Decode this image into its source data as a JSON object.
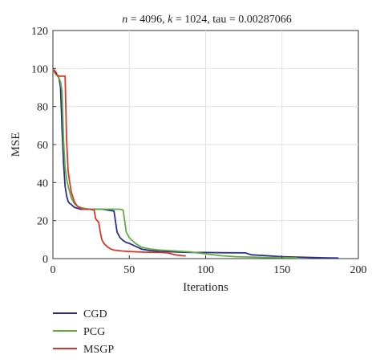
{
  "chart_data": {
    "type": "line",
    "title_parts": [
      {
        "text": "n",
        "italic": true
      },
      {
        "text": " = 4096, ",
        "italic": false
      },
      {
        "text": "k",
        "italic": true
      },
      {
        "text": " = 1024, tau = 0.00287066",
        "italic": false
      }
    ],
    "xlabel": "Iterations",
    "ylabel": "MSE",
    "xlim": [
      0,
      200
    ],
    "ylim": [
      0,
      120
    ],
    "xticks": [
      0,
      50,
      100,
      150,
      200
    ],
    "yticks": [
      0,
      20,
      40,
      60,
      80,
      100,
      120
    ],
    "grid": true,
    "legend_position": "below",
    "series": [
      {
        "name": "CGD",
        "color": "#2a2f8f",
        "x": [
          0,
          1,
          2,
          3,
          4,
          5,
          6,
          7,
          8,
          9,
          10,
          11,
          12,
          14,
          16,
          18,
          20,
          24,
          28,
          32,
          36,
          40,
          42,
          44,
          46,
          48,
          50,
          54,
          58,
          64,
          70,
          80,
          90,
          100,
          110,
          126,
          130,
          140,
          150,
          160,
          170,
          180,
          187
        ],
        "y": [
          100,
          99,
          98,
          96,
          95,
          90,
          68,
          50,
          38,
          33,
          30,
          29,
          28.5,
          27,
          26.5,
          26,
          26,
          26,
          26,
          26,
          25.5,
          25,
          14,
          11,
          9.5,
          8.5,
          8,
          6.5,
          5,
          4.2,
          3.8,
          3.5,
          3.2,
          3.2,
          3.1,
          3.0,
          2.0,
          1.5,
          1.0,
          0.8,
          0.6,
          0.4,
          0.3
        ]
      },
      {
        "name": "PCG",
        "color": "#5dae3f",
        "x": [
          0,
          1,
          2,
          3,
          4,
          5,
          6,
          7,
          8,
          9,
          10,
          11,
          12,
          14,
          16,
          18,
          20,
          24,
          28,
          32,
          36,
          40,
          44,
          46,
          47,
          48,
          50,
          54,
          58,
          64,
          70,
          80,
          90,
          100,
          110,
          120,
          130,
          140,
          150,
          160
        ],
        "y": [
          100,
          98,
          97,
          96,
          95,
          93,
          88,
          62,
          48,
          42,
          38,
          35,
          32,
          29,
          27.5,
          27,
          26.5,
          26,
          26,
          26,
          26,
          26,
          26,
          25.5,
          20,
          14,
          11,
          8,
          6,
          5,
          4.5,
          4,
          3.5,
          2.5,
          1.5,
          1.0,
          0.8,
          0.6,
          0.5,
          0.4
        ]
      },
      {
        "name": "MSGP",
        "color": "#d8362a",
        "x": [
          0,
          1,
          2,
          3,
          4,
          6,
          8,
          9,
          10,
          11,
          12,
          14,
          16,
          18,
          20,
          24,
          27,
          28,
          30,
          31,
          32,
          33,
          34,
          36,
          38,
          40,
          45,
          50,
          60,
          70,
          75,
          80,
          85,
          87
        ],
        "y": [
          100,
          99,
          97,
          96.5,
          96,
          96,
          96,
          62,
          46,
          40,
          35,
          30,
          27.5,
          26.5,
          26,
          26,
          25.5,
          21,
          19,
          14,
          10,
          8.5,
          7.5,
          6,
          5,
          4.5,
          4,
          3.7,
          3.4,
          3.2,
          3.0,
          2.0,
          1.5,
          1.4
        ]
      }
    ]
  }
}
